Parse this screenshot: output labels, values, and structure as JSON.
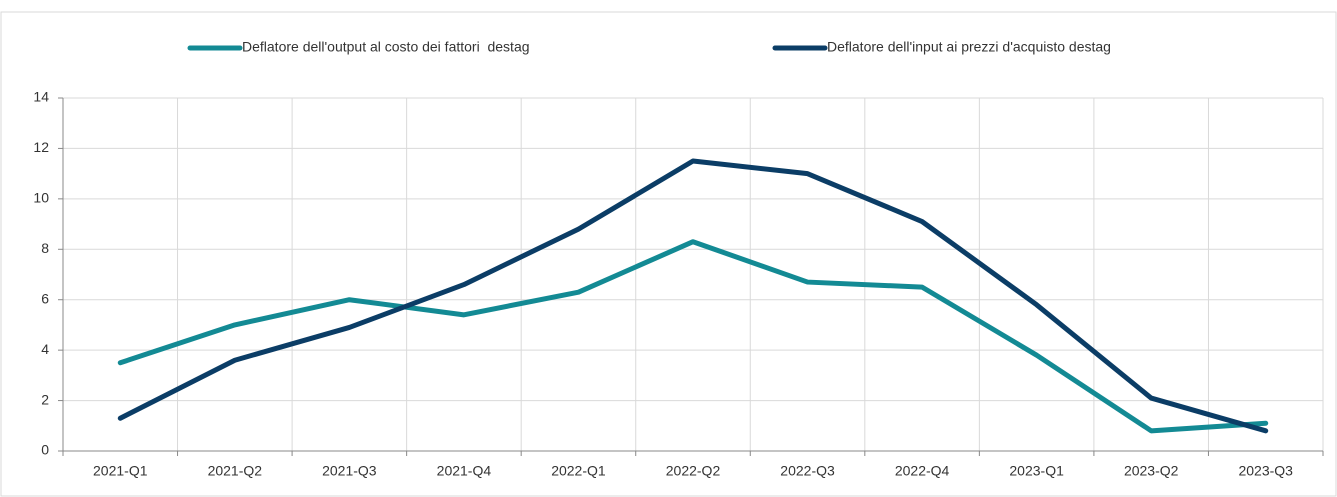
{
  "chart_data": {
    "type": "line",
    "categories": [
      "2021-Q1",
      "2021-Q2",
      "2021-Q3",
      "2021-Q4",
      "2022-Q1",
      "2022-Q2",
      "2022-Q3",
      "2022-Q4",
      "2023-Q1",
      "2023-Q2",
      "2023-Q3"
    ],
    "series": [
      {
        "name": "Deflatore dell'output al costo dei fattori  destag",
        "color": "#138a94",
        "values": [
          3.5,
          5.0,
          6.0,
          5.4,
          6.3,
          8.3,
          6.7,
          6.5,
          3.8,
          0.8,
          1.1
        ]
      },
      {
        "name": "Deflatore dell'input ai prezzi d'acquisto destag",
        "color": "#0b3d66",
        "values": [
          1.3,
          3.6,
          4.9,
          6.6,
          8.8,
          11.5,
          11.0,
          9.1,
          5.8,
          2.1,
          0.8
        ]
      }
    ],
    "ylim": [
      0,
      14
    ],
    "yticks": [
      0,
      2,
      4,
      6,
      8,
      10,
      12,
      14
    ],
    "grid": true,
    "legend": "top"
  }
}
